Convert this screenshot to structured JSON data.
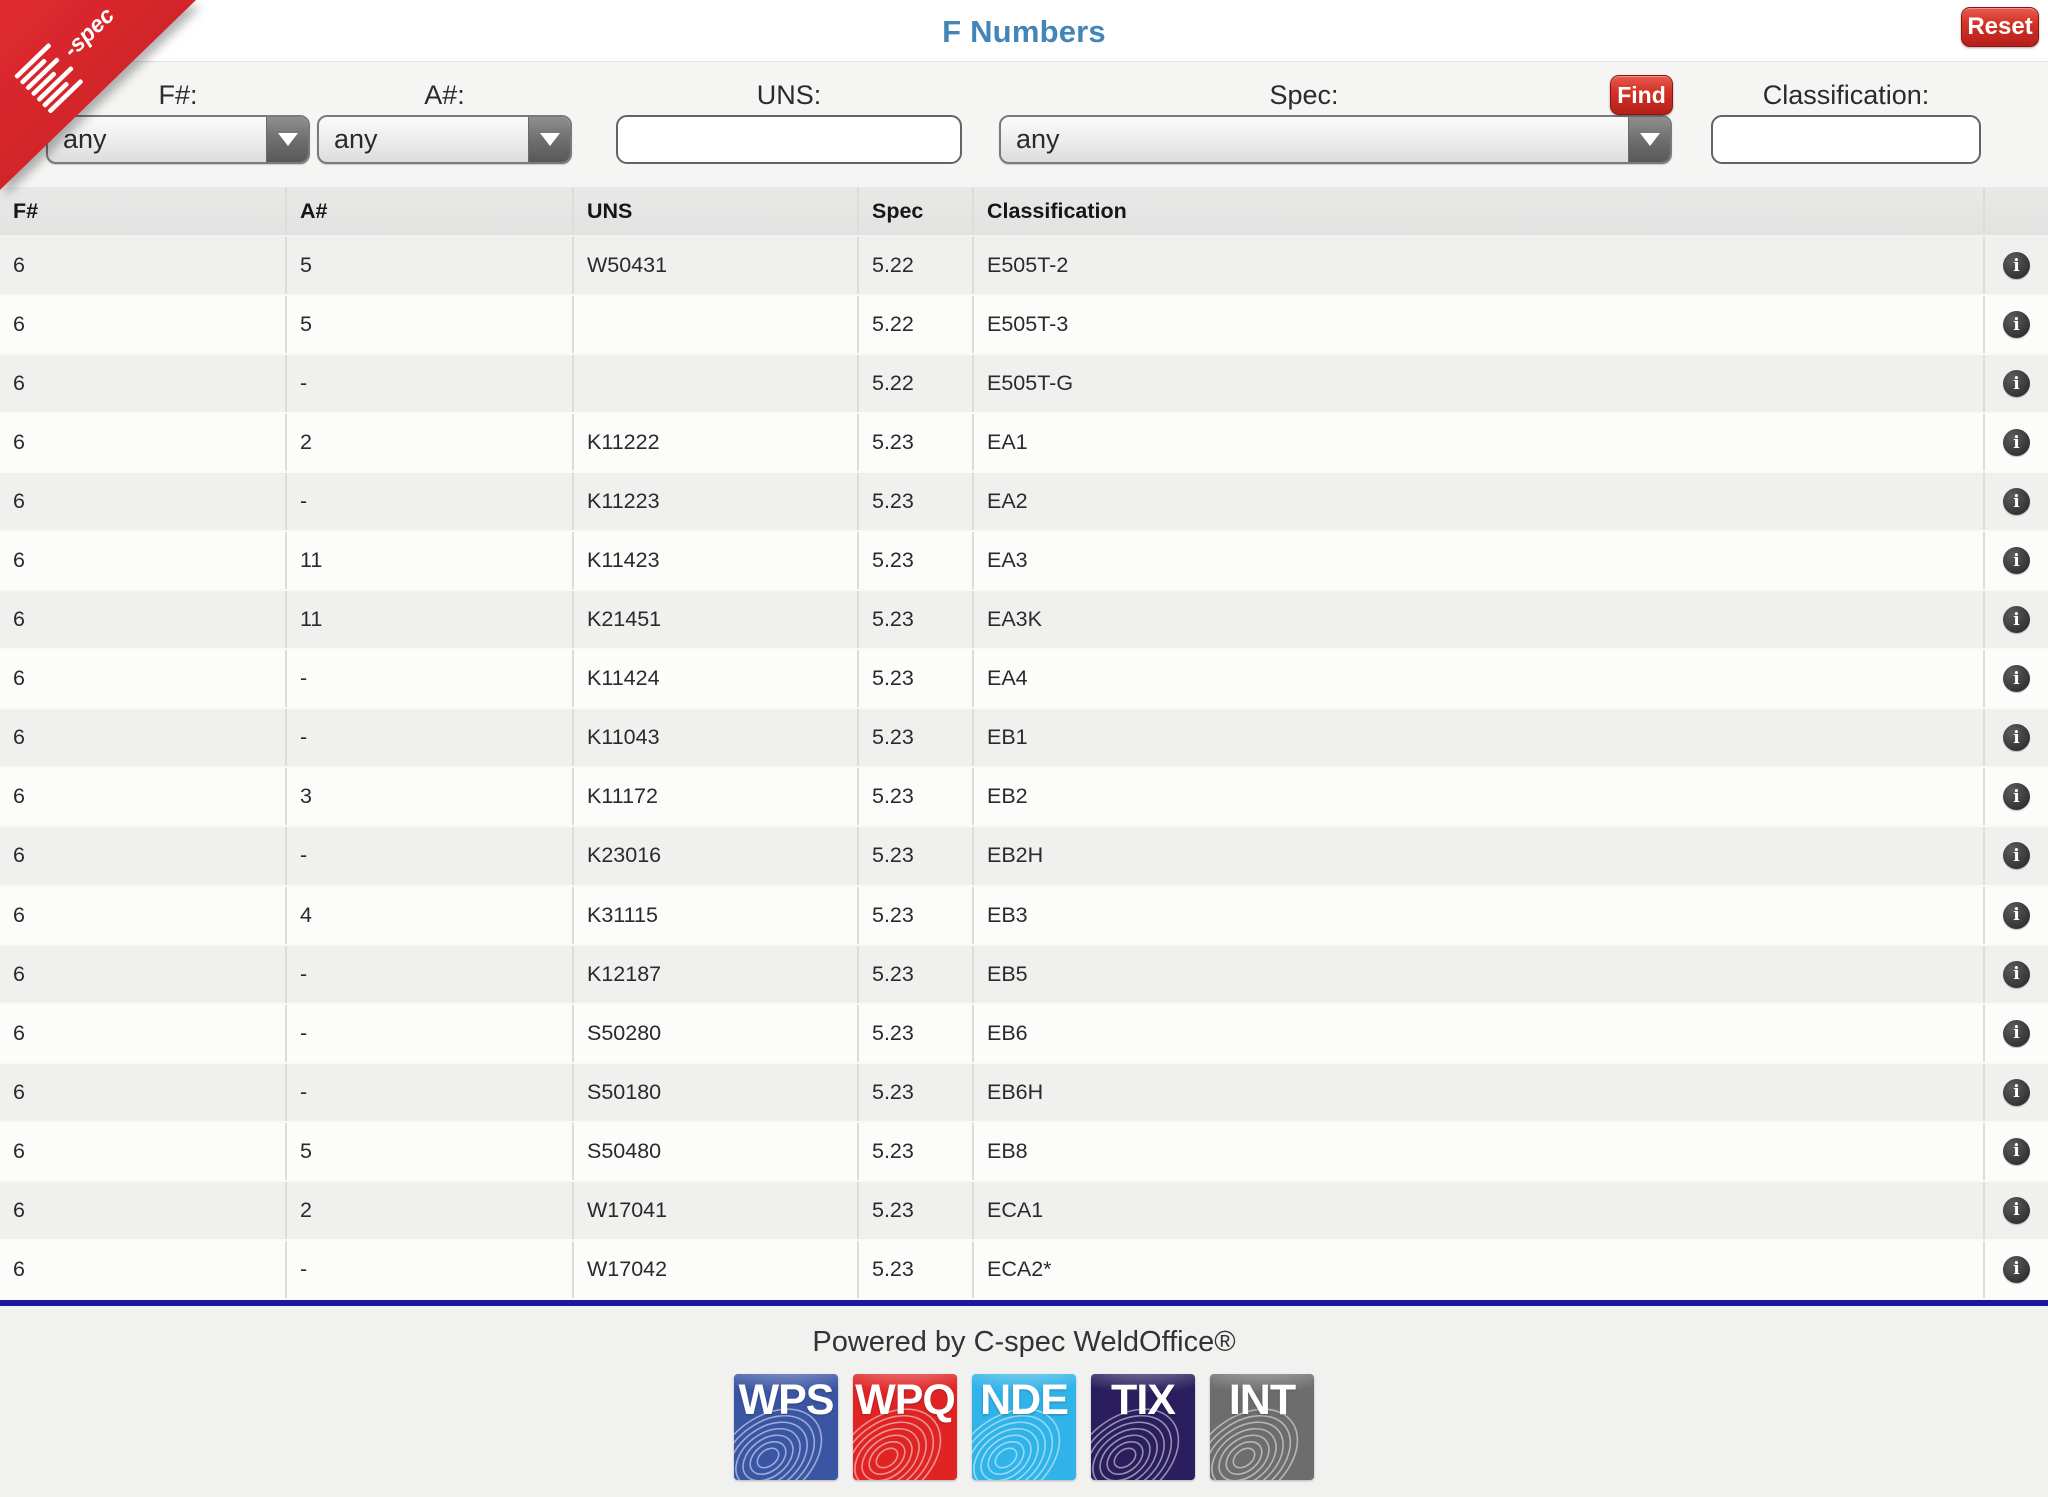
{
  "header": {
    "title": "F Numbers",
    "reset_label": "Reset",
    "ribbon_brand": "-spec"
  },
  "filters": {
    "f_number": {
      "label": "F#:",
      "value": "any"
    },
    "a_number": {
      "label": "A#:",
      "value": "any"
    },
    "uns": {
      "label": "UNS:",
      "value": ""
    },
    "spec": {
      "label": "Spec:",
      "value": "any"
    },
    "find_label": "Find",
    "classification": {
      "label": "Classification:",
      "value": ""
    }
  },
  "table": {
    "columns": [
      "F#",
      "A#",
      "UNS",
      "Spec",
      "Classification"
    ],
    "rows": [
      {
        "f": "6",
        "a": "5",
        "uns": "W50431",
        "spec": "5.22",
        "cls": "E505T-2"
      },
      {
        "f": "6",
        "a": "5",
        "uns": "",
        "spec": "5.22",
        "cls": "E505T-3"
      },
      {
        "f": "6",
        "a": "-",
        "uns": "",
        "spec": "5.22",
        "cls": "E505T-G"
      },
      {
        "f": "6",
        "a": "2",
        "uns": "K11222",
        "spec": "5.23",
        "cls": "EA1"
      },
      {
        "f": "6",
        "a": "-",
        "uns": "K11223",
        "spec": "5.23",
        "cls": "EA2"
      },
      {
        "f": "6",
        "a": "11",
        "uns": "K11423",
        "spec": "5.23",
        "cls": "EA3"
      },
      {
        "f": "6",
        "a": "11",
        "uns": "K21451",
        "spec": "5.23",
        "cls": "EA3K"
      },
      {
        "f": "6",
        "a": "-",
        "uns": "K11424",
        "spec": "5.23",
        "cls": "EA4"
      },
      {
        "f": "6",
        "a": "-",
        "uns": "K11043",
        "spec": "5.23",
        "cls": "EB1"
      },
      {
        "f": "6",
        "a": "3",
        "uns": "K11172",
        "spec": "5.23",
        "cls": "EB2"
      },
      {
        "f": "6",
        "a": "-",
        "uns": "K23016",
        "spec": "5.23",
        "cls": "EB2H"
      },
      {
        "f": "6",
        "a": "4",
        "uns": "K31115",
        "spec": "5.23",
        "cls": "EB3"
      },
      {
        "f": "6",
        "a": "-",
        "uns": "K12187",
        "spec": "5.23",
        "cls": "EB5"
      },
      {
        "f": "6",
        "a": "-",
        "uns": "S50280",
        "spec": "5.23",
        "cls": "EB6"
      },
      {
        "f": "6",
        "a": "-",
        "uns": "S50180",
        "spec": "5.23",
        "cls": "EB6H"
      },
      {
        "f": "6",
        "a": "5",
        "uns": "S50480",
        "spec": "5.23",
        "cls": "EB8"
      },
      {
        "f": "6",
        "a": "2",
        "uns": "W17041",
        "spec": "5.23",
        "cls": "ECA1"
      },
      {
        "f": "6",
        "a": "-",
        "uns": "W17042",
        "spec": "5.23",
        "cls": "ECA2*"
      }
    ],
    "info_icon_glyph": "i"
  },
  "footer": {
    "powered_by": "Powered by C-spec WeldOffice®",
    "badges": [
      {
        "label": "WPS",
        "color": "#3a55a4"
      },
      {
        "label": "WPQ",
        "color": "#e02424"
      },
      {
        "label": "NDE",
        "color": "#2fb3e8"
      },
      {
        "label": "TIX",
        "color": "#2b1e5e"
      },
      {
        "label": "INT",
        "color": "#6d6d6d"
      }
    ]
  },
  "colors": {
    "title_blue": "#4285b6",
    "button_red": "#c42724",
    "divider_navy": "#1a18a0",
    "ribbon_red": "#d2232a",
    "header_gray": "#e5e5e4",
    "row_odd": "#f0f0ef",
    "row_even": "#fcfcfb"
  }
}
